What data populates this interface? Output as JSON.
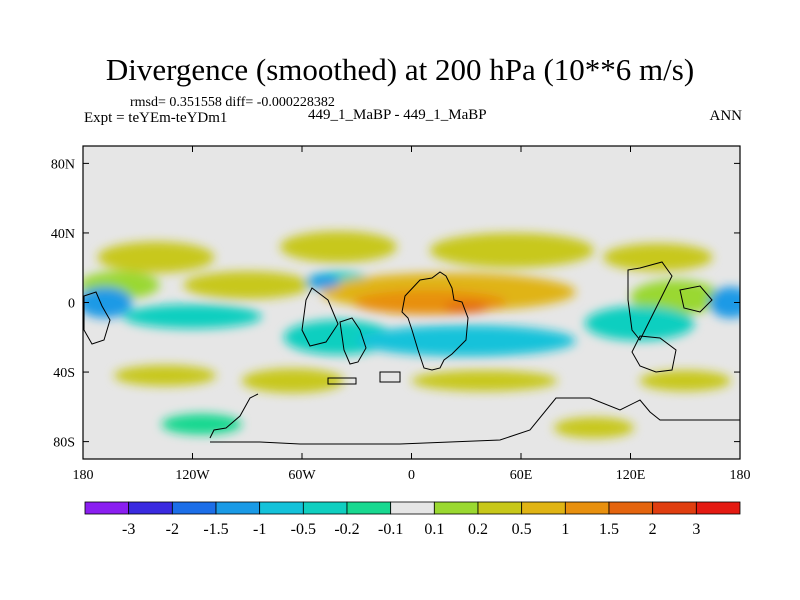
{
  "header": {
    "title": "Divergence (smoothed) at 200 hPa (10**6 m/s)",
    "stats": "rmsd= 0.351558 diff= -0.000228382",
    "expt": "Expt = teYEm-teYDm1",
    "case": "449_1_MaBP - 449_1_MaBP",
    "season": "ANN"
  },
  "chart_data": {
    "type": "heatmap",
    "title": "Divergence (smoothed) at 200 hPa (10**6 m/s)",
    "xlabel": "",
    "ylabel": "",
    "xlim": [
      -180,
      180
    ],
    "ylim": [
      -90,
      90
    ],
    "x_ticks": [
      {
        "value": -180,
        "label": "180"
      },
      {
        "value": -120,
        "label": "120W"
      },
      {
        "value": -60,
        "label": "60W"
      },
      {
        "value": 0,
        "label": "0"
      },
      {
        "value": 60,
        "label": "60E"
      },
      {
        "value": 120,
        "label": "120E"
      },
      {
        "value": 180,
        "label": "180"
      }
    ],
    "y_ticks": [
      {
        "value": 80,
        "label": "80N"
      },
      {
        "value": 40,
        "label": "40N"
      },
      {
        "value": 0,
        "label": "0"
      },
      {
        "value": -40,
        "label": "40S"
      },
      {
        "value": -80,
        "label": "80S"
      }
    ],
    "colorbar": {
      "labels": [
        "-3",
        "-2",
        "-1.5",
        "-1",
        "-0.5",
        "-0.2",
        "-0.1",
        "0.1",
        "0.2",
        "0.5",
        "1",
        "1.5",
        "2",
        "3"
      ],
      "colors": [
        "#8a1ef0",
        "#3a2ae0",
        "#1c6ee8",
        "#1a9ae6",
        "#14c2da",
        "#10cfc0",
        "#18d890",
        "#e6e6e6",
        "#9ad830",
        "#c8c81a",
        "#e0b414",
        "#e8900e",
        "#e4640e",
        "#e03e10",
        "#e41a12"
      ],
      "colorbar_role": "bins between adjacent labels"
    },
    "field_blobs": [
      {
        "lon": -140,
        "lat": 26,
        "rlon": 32,
        "rlat": 9,
        "value": 0.25
      },
      {
        "lon": -40,
        "lat": 32,
        "rlon": 32,
        "rlat": 9,
        "value": 0.3
      },
      {
        "lon": 55,
        "lat": 30,
        "rlon": 45,
        "rlat": 10,
        "value": 0.25
      },
      {
        "lon": 135,
        "lat": 26,
        "rlon": 30,
        "rlat": 8,
        "value": 0.2
      },
      {
        "lon": -160,
        "lat": 10,
        "rlon": 22,
        "rlat": 8,
        "value": 0.1
      },
      {
        "lon": -90,
        "lat": 10,
        "rlon": 35,
        "rlat": 8,
        "value": 0.2
      },
      {
        "lon": -40,
        "lat": 12,
        "rlon": 18,
        "rlat": 6,
        "value": -0.5
      },
      {
        "lon": -48,
        "lat": 12,
        "rlon": 9,
        "rlat": 4,
        "value": -1.2
      },
      {
        "lon": 20,
        "lat": 6,
        "rlon": 70,
        "rlat": 11,
        "value": 0.6
      },
      {
        "lon": 10,
        "lat": 0,
        "rlon": 42,
        "rlat": 7,
        "value": 1.1
      },
      {
        "lon": 30,
        "lat": -3,
        "rlon": 12,
        "rlat": 3,
        "value": 1.6
      },
      {
        "lon": 145,
        "lat": 3,
        "rlon": 25,
        "rlat": 10,
        "value": 0.15
      },
      {
        "lon": -168,
        "lat": 0,
        "rlon": 15,
        "rlat": 9,
        "value": -1.1
      },
      {
        "lon": -120,
        "lat": -8,
        "rlon": 38,
        "rlat": 7,
        "value": -0.5
      },
      {
        "lon": -40,
        "lat": -20,
        "rlon": 30,
        "rlat": 10,
        "value": -0.5
      },
      {
        "lon": 30,
        "lat": -22,
        "rlon": 60,
        "rlat": 9,
        "value": -0.6
      },
      {
        "lon": 125,
        "lat": -12,
        "rlon": 30,
        "rlat": 10,
        "value": -0.5
      },
      {
        "lon": 175,
        "lat": 0,
        "rlon": 12,
        "rlat": 9,
        "value": -1.1
      },
      {
        "lon": -135,
        "lat": -42,
        "rlon": 28,
        "rlat": 6,
        "value": 0.2
      },
      {
        "lon": -65,
        "lat": -45,
        "rlon": 28,
        "rlat": 7,
        "value": 0.25
      },
      {
        "lon": 40,
        "lat": -45,
        "rlon": 40,
        "rlat": 6,
        "value": 0.2
      },
      {
        "lon": 150,
        "lat": -45,
        "rlon": 25,
        "rlat": 6,
        "value": 0.2
      },
      {
        "lon": -115,
        "lat": -70,
        "rlon": 22,
        "rlat": 6,
        "value": -0.2
      },
      {
        "lon": 100,
        "lat": -72,
        "rlon": 22,
        "rlat": 6,
        "value": 0.2
      }
    ]
  }
}
